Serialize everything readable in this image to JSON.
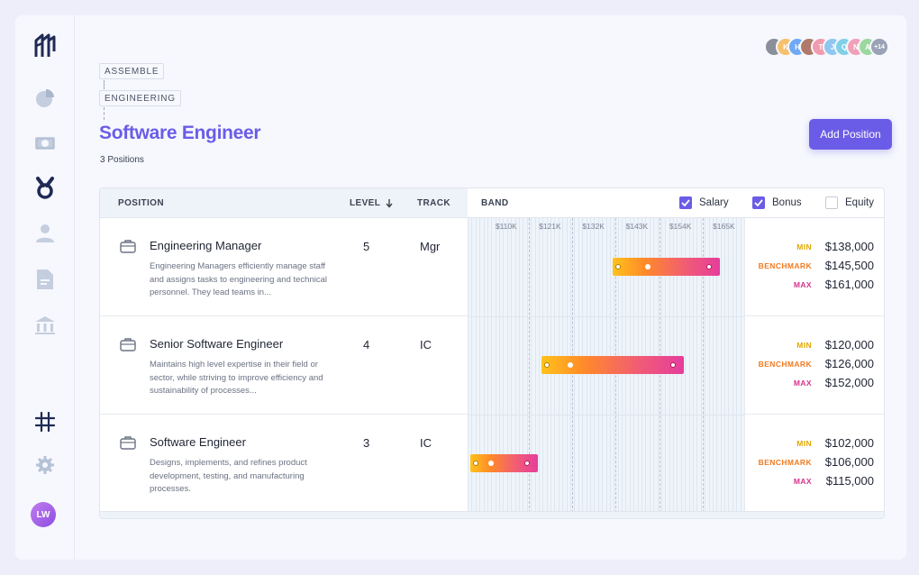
{
  "breadcrumb": [
    "ASSEMBLE",
    "ENGINEERING"
  ],
  "page": {
    "title": "Software Engineer",
    "subtitle": "3 Positions"
  },
  "actions": {
    "add_position": "Add Position"
  },
  "collaborators": {
    "initials": [
      "",
      "K",
      "H",
      "",
      "T",
      "J",
      "Q",
      "N",
      "A"
    ],
    "colors": [
      "#8a8f99",
      "#f5c16c",
      "#6fa8f5",
      "#b07a6a",
      "#f29bb0",
      "#8fc7f0",
      "#7fd0e8",
      "#f0a0b8",
      "#9bd8a0"
    ],
    "more": "+14"
  },
  "table": {
    "headers": {
      "position": "POSITION",
      "level": "LEVEL",
      "track": "TRACK",
      "band": "BAND"
    },
    "toggles": [
      {
        "label": "Salary",
        "checked": true
      },
      {
        "label": "Bonus",
        "checked": true
      },
      {
        "label": "Equity",
        "checked": false
      }
    ],
    "ticks": [
      "$110K",
      "$121K",
      "$132K",
      "$143K",
      "$154K",
      "$165K"
    ],
    "value_labels": {
      "min": "MIN",
      "benchmark": "BENCHMARK",
      "max": "MAX"
    },
    "rows": [
      {
        "name": "Engineering Manager",
        "description": "Engineering Managers efficiently manage staff and assigns tasks to engineering and technical personnel. They lead teams in...",
        "level": "5",
        "track": "Mgr",
        "min": "$138,000",
        "benchmark": "$145,500",
        "max": "$161,000",
        "band": {
          "min": 138000,
          "benchmark": 145500,
          "max": 161000
        }
      },
      {
        "name": "Senior Software Engineer",
        "description": "Maintains high level expertise in their field or sector, while striving to improve efficiency and sustainability of processes...",
        "level": "4",
        "track": "IC",
        "min": "$120,000",
        "benchmark": "$126,000",
        "max": "$152,000",
        "band": {
          "min": 120000,
          "benchmark": 126000,
          "max": 152000
        }
      },
      {
        "name": "Software Engineer",
        "description": "Designs, implements, and refines product development, testing, and manufacturing processes.",
        "level": "3",
        "track": "IC",
        "min": "$102,000",
        "benchmark": "$106,000",
        "max": "$115,000",
        "band": {
          "min": 102000,
          "benchmark": 106000,
          "max": 115000
        }
      }
    ]
  }
}
